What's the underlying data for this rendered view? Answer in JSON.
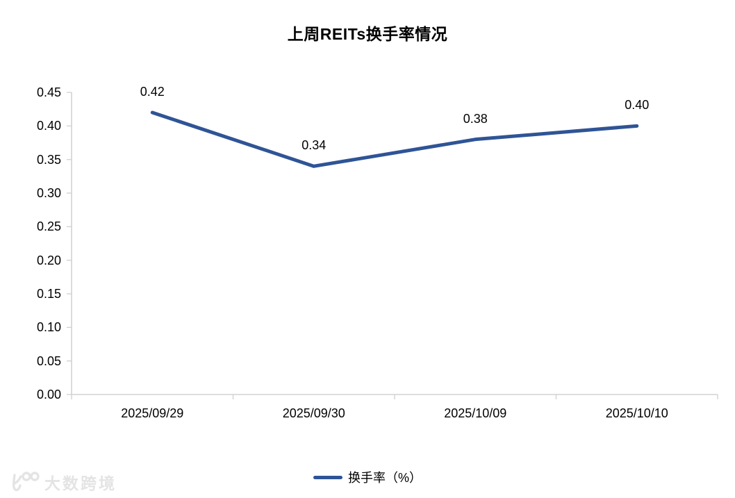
{
  "title": "上周REITs换手率情况",
  "chart_data": {
    "type": "line",
    "title": "上周REITs换手率情况",
    "categories": [
      "2025/09/29",
      "2025/09/30",
      "2025/10/09",
      "2025/10/10"
    ],
    "series": [
      {
        "name": "换手率（%）",
        "values": [
          0.42,
          0.34,
          0.38,
          0.4
        ]
      }
    ],
    "data_labels": [
      "0.42",
      "0.34",
      "0.38",
      "0.40"
    ],
    "ylim": [
      0,
      0.45
    ],
    "ytick_step": 0.05,
    "ytick_labels": [
      "0.00",
      "0.05",
      "0.10",
      "0.15",
      "0.20",
      "0.25",
      "0.30",
      "0.35",
      "0.40",
      "0.45"
    ],
    "xlabel": "",
    "ylabel": "",
    "grid": false,
    "legend_position": "bottom",
    "line_color": "#2F5496",
    "axis_color": "#D2D2D2",
    "label_color": "#000000"
  },
  "legend": {
    "label": "换手率（%）"
  },
  "watermark": {
    "text": "大数跨境",
    "color": "#E4E4E4"
  }
}
